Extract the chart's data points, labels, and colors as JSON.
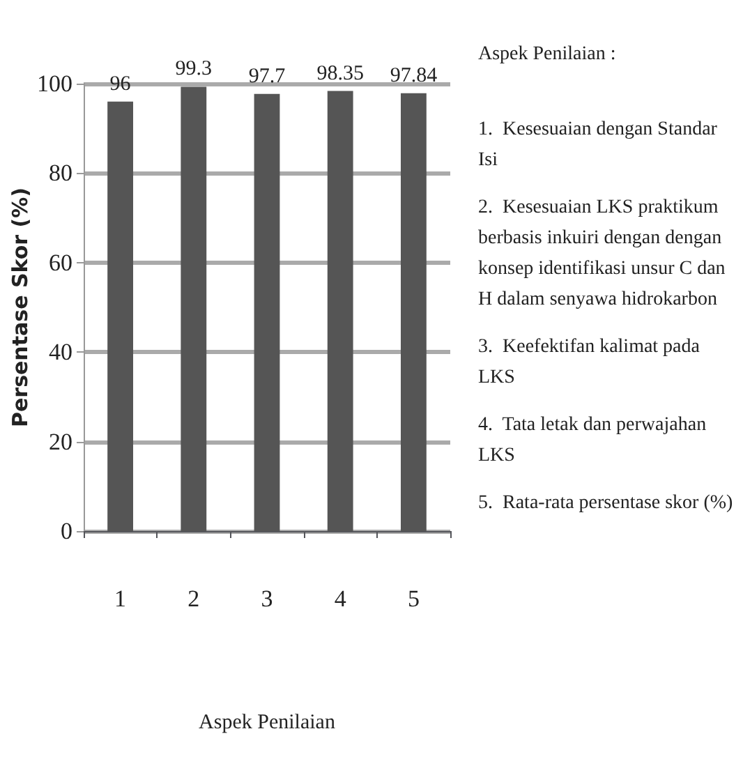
{
  "chart_data": {
    "type": "bar",
    "categories": [
      "1",
      "2",
      "3",
      "4",
      "5"
    ],
    "values": [
      96,
      99.3,
      97.7,
      98.35,
      97.84
    ],
    "color": "#555555",
    "ylabel": "Persentase Skor (%)",
    "xlabel": "Aspek Penilaian",
    "ylim": [
      0,
      100
    ],
    "yticks": [
      0,
      20,
      40,
      60,
      80,
      100
    ],
    "grid": "y",
    "data_labels": true,
    "annotations": [
      "Aspek Penilaian :",
      "1.  Kesesuaian dengan Standar Isi",
      "2.  Kesesuaian LKS praktikum berbasis inkuiri dengan dengan konsep identifikasi unsur C dan H dalam senyawa hidrokarbon",
      "3.  Keefektifan kalimat pada LKS",
      "4.  Tata letak dan perwajahan LKS",
      "5.  Rata-rata persentase skor (%)"
    ]
  }
}
